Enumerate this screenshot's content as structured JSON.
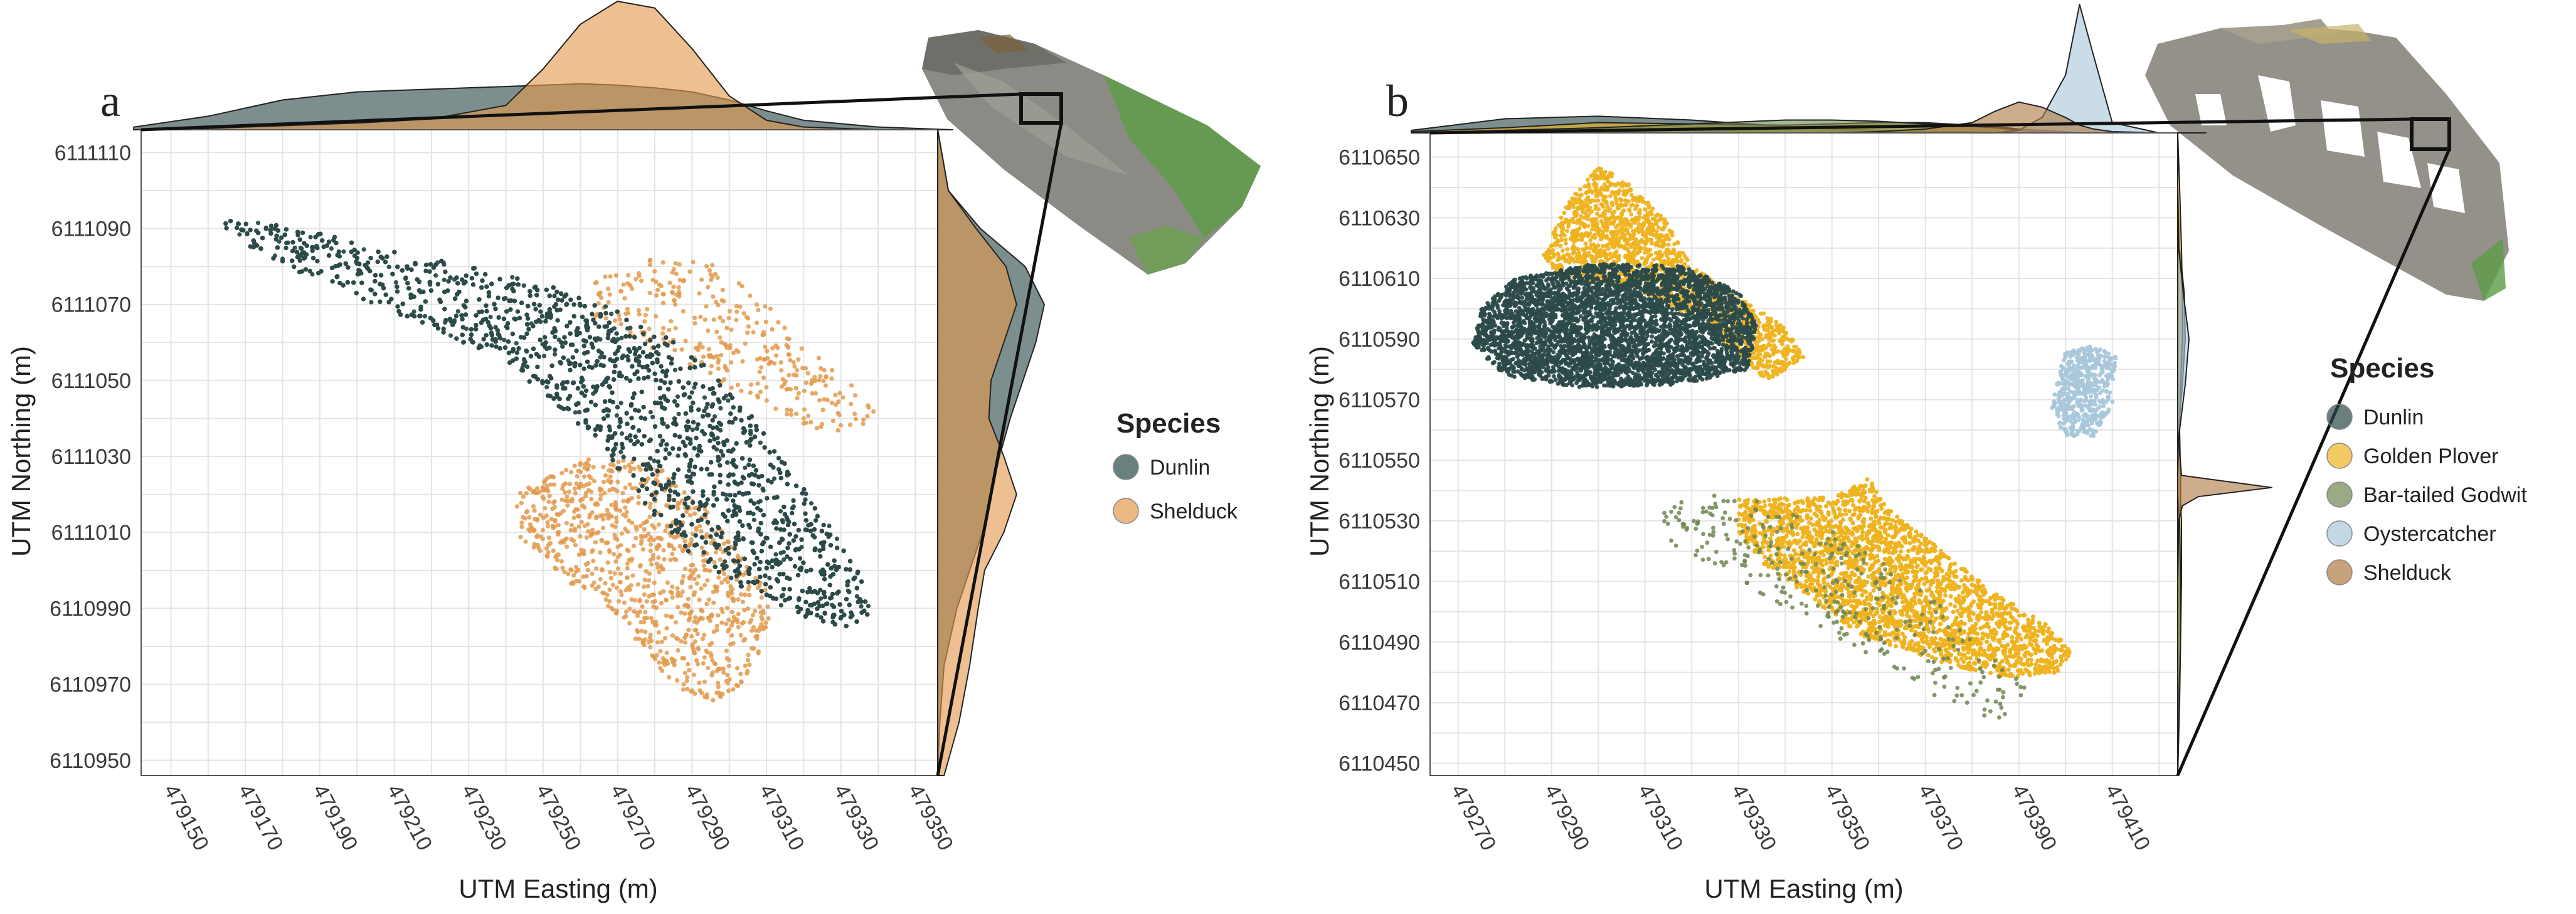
{
  "figure": {
    "panels": [
      {
        "letter": "a"
      },
      {
        "letter": "b"
      }
    ]
  },
  "colors": {
    "Dunlin": "#2b4a49",
    "Shelduck_a": "#e39a4e",
    "Shelduck_b": "#b07a46",
    "Golden Plover": "#efb321",
    "Bar-tailed Godwit": "#6e8650",
    "Oystercatcher": "#a9c7da",
    "grid": "#e4e4e4",
    "panel_border": "#555555",
    "map_bg": "#8a8a84",
    "map_green": "#5b9a45"
  },
  "chart_data": [
    {
      "type": "scatter",
      "panel": "a",
      "title": "",
      "xlabel": "UTM Easting (m)",
      "ylabel": "UTM Northing (m)",
      "xlim": [
        479142,
        479356
      ],
      "ylim": [
        6110946,
        6111116
      ],
      "xticks": [
        479150,
        479170,
        479190,
        479210,
        479230,
        479250,
        479270,
        479290,
        479310,
        479330,
        479350
      ],
      "yticks": [
        6110950,
        6110970,
        6110990,
        6111010,
        6111030,
        6111050,
        6111070,
        6111090,
        6111110
      ],
      "legend": {
        "title": "Species",
        "entries": [
          "Dunlin",
          "Shelduck"
        ],
        "position": "right"
      },
      "series": [
        {
          "name": "Dunlin",
          "kind": "dense_cluster",
          "n_points": 5200,
          "outline": [
            [
              479165,
              6111093
            ],
            [
              479185,
              6111090
            ],
            [
              479210,
              6111084
            ],
            [
              479240,
              6111078
            ],
            [
              479262,
              6111072
            ],
            [
              479280,
              6111064
            ],
            [
              479296,
              6111052
            ],
            [
              479310,
              6111036
            ],
            [
              479324,
              6111016
            ],
            [
              479336,
              6110998
            ],
            [
              479339,
              6110987
            ],
            [
              479330,
              6110985
            ],
            [
              479318,
              6110988
            ],
            [
              479300,
              6110997
            ],
            [
              479285,
              6111008
            ],
            [
              479274,
              6111022
            ],
            [
              479258,
              6111040
            ],
            [
              479240,
              6111055
            ],
            [
              479215,
              6111066
            ],
            [
              479190,
              6111076
            ],
            [
              479170,
              6111085
            ],
            [
              479164,
              6111091
            ]
          ]
        },
        {
          "name": "Shelduck",
          "kind": "sparse_cloud",
          "regions": [
            {
              "n_points": 320,
              "outline": [
                [
                  479262,
                  6111076
                ],
                [
                  479282,
                  6111083
                ],
                [
                  479298,
                  6111080
                ],
                [
                  479310,
                  6111070
                ],
                [
                  479322,
                  6111058
                ],
                [
                  479334,
                  6111048
                ],
                [
                  479342,
                  6111038
                ],
                [
                  479326,
                  6111036
                ],
                [
                  479312,
                  6111042
                ],
                [
                  479296,
                  6111050
                ],
                [
                  479280,
                  6111058
                ],
                [
                  479264,
                  6111066
                ]
              ]
            },
            {
              "n_points": 900,
              "outline": [
                [
                  479242,
                  6111020
                ],
                [
                  479262,
                  6111030
                ],
                [
                  479280,
                  6111028
                ],
                [
                  479292,
                  6111018
                ],
                [
                  479302,
                  6111006
                ],
                [
                  479312,
                  6110992
                ],
                [
                  479308,
                  6110978
                ],
                [
                  479300,
                  6110965
                ],
                [
                  479290,
                  6110966
                ],
                [
                  479280,
                  6110975
                ],
                [
                  479270,
                  6110988
                ],
                [
                  479255,
                  6110998
                ],
                [
                  479244,
                  6111008
                ]
              ]
            }
          ]
        }
      ],
      "marginal_x": {
        "x": [
          479140,
          479160,
          479180,
          479200,
          479220,
          479240,
          479250,
          479260,
          479270,
          479280,
          479290,
          479300,
          479310,
          479320,
          479340,
          479360
        ],
        "Dunlin": [
          0.02,
          0.1,
          0.22,
          0.28,
          0.3,
          0.32,
          0.33,
          0.34,
          0.33,
          0.31,
          0.28,
          0.22,
          0.14,
          0.07,
          0.02,
          0.0
        ],
        "Shelduck": [
          0.0,
          0.01,
          0.03,
          0.05,
          0.08,
          0.18,
          0.45,
          0.78,
          0.95,
          0.9,
          0.6,
          0.25,
          0.07,
          0.02,
          0.0,
          0.0
        ]
      },
      "marginal_y": {
        "y": [
          6110946,
          6110960,
          6110975,
          6110990,
          6111000,
          6111010,
          6111020,
          6111030,
          6111040,
          6111050,
          6111060,
          6111070,
          6111080,
          6111090,
          6111100,
          6111116
        ],
        "Dunlin": [
          0.0,
          0.02,
          0.06,
          0.18,
          0.3,
          0.42,
          0.5,
          0.58,
          0.68,
          0.8,
          0.92,
          1.0,
          0.82,
          0.4,
          0.1,
          0.0
        ],
        "Shelduck": [
          0.06,
          0.2,
          0.3,
          0.38,
          0.44,
          0.62,
          0.74,
          0.62,
          0.48,
          0.5,
          0.62,
          0.74,
          0.64,
          0.36,
          0.1,
          0.0
        ]
      }
    },
    {
      "type": "scatter",
      "panel": "b",
      "title": "",
      "xlabel": "UTM Easting (m)",
      "ylabel": "UTM Northing (m)",
      "xlim": [
        479264,
        479424
      ],
      "ylim": [
        6110446,
        6110658
      ],
      "xticks": [
        479270,
        479290,
        479310,
        479330,
        479350,
        479370,
        479390,
        479410
      ],
      "yticks": [
        6110450,
        6110470,
        6110490,
        6110510,
        6110530,
        6110550,
        6110570,
        6110590,
        6110610,
        6110630,
        6110650
      ],
      "legend": {
        "title": "Species",
        "entries": [
          "Dunlin",
          "Golden Plover",
          "Bar-tailed Godwit",
          "Oystercatcher",
          "Shelduck"
        ],
        "position": "right"
      },
      "series": [
        {
          "name": "Golden Plover",
          "kind": "dense_cluster",
          "n_points": 2000,
          "outline": [
            [
              479288,
              6110618
            ],
            [
              479294,
              6110636
            ],
            [
              479300,
              6110647
            ],
            [
              479306,
              6110642
            ],
            [
              479314,
              6110630
            ],
            [
              479320,
              6110614
            ],
            [
              479330,
              6110604
            ],
            [
              479340,
              6110594
            ],
            [
              479344,
              6110584
            ],
            [
              479336,
              6110576
            ],
            [
              479322,
              6110596
            ],
            [
              479306,
              6110608
            ],
            [
              479292,
              6110610
            ]
          ]
        },
        {
          "name": "Dunlin",
          "kind": "dense_cluster",
          "n_points": 4200,
          "outline": [
            [
              479275,
              6110600
            ],
            [
              479282,
              6110610
            ],
            [
              479300,
              6110615
            ],
            [
              479318,
              6110614
            ],
            [
              479330,
              6110606
            ],
            [
              479334,
              6110594
            ],
            [
              479332,
              6110580
            ],
            [
              479318,
              6110575
            ],
            [
              479296,
              6110574
            ],
            [
              479280,
              6110578
            ],
            [
              479273,
              6110588
            ]
          ]
        },
        {
          "name": "Golden Plover",
          "kind": "dense_cluster",
          "n_points": 4800,
          "outline": [
            [
              479330,
              6110537
            ],
            [
              479350,
              6110538
            ],
            [
              479358,
              6110544
            ],
            [
              479362,
              6110534
            ],
            [
              479372,
              6110522
            ],
            [
              479385,
              6110506
            ],
            [
              479396,
              6110496
            ],
            [
              479402,
              6110486
            ],
            [
              479398,
              6110480
            ],
            [
              479386,
              6110478
            ],
            [
              479372,
              6110484
            ],
            [
              479356,
              6110492
            ],
            [
              479346,
              6110504
            ],
            [
              479335,
              6110516
            ],
            [
              479330,
              6110526
            ]
          ]
        },
        {
          "name": "Bar-tailed Godwit",
          "kind": "sparse_cloud",
          "n_points": 330,
          "outline": [
            [
              479313,
              6110532
            ],
            [
              479322,
              6110540
            ],
            [
              479336,
              6110536
            ],
            [
              479354,
              6110524
            ],
            [
              479370,
              6110506
            ],
            [
              479384,
              6110488
            ],
            [
              479392,
              6110474
            ],
            [
              479386,
              6110464
            ],
            [
              479376,
              6110468
            ],
            [
              479362,
              6110482
            ],
            [
              479346,
              6110496
            ],
            [
              479330,
              6110510
            ],
            [
              479316,
              6110522
            ]
          ]
        },
        {
          "name": "Oystercatcher",
          "kind": "dense_cluster",
          "n_points": 520,
          "outline": [
            [
              479398,
              6110576
            ],
            [
              479400,
              6110586
            ],
            [
              479406,
              6110588
            ],
            [
              479411,
              6110584
            ],
            [
              479410,
              6110568
            ],
            [
              479406,
              6110558
            ],
            [
              479400,
              6110558
            ],
            [
              479397,
              6110566
            ]
          ]
        }
      ],
      "marginal_x": {
        "x": [
          479260,
          479280,
          479300,
          479320,
          479340,
          479350,
          479360,
          479370,
          479380,
          479385,
          479390,
          479395,
          479400,
          479403,
          479406,
          479410,
          479420,
          479430
        ],
        "Dunlin": [
          0.02,
          0.11,
          0.13,
          0.1,
          0.05,
          0.03,
          0.02,
          0.01,
          0.01,
          0.0,
          0.0,
          0.0,
          0.0,
          0.0,
          0.0,
          0.0,
          0.0,
          0.0
        ],
        "Golden Plover": [
          0.01,
          0.04,
          0.08,
          0.07,
          0.06,
          0.07,
          0.08,
          0.08,
          0.06,
          0.05,
          0.03,
          0.02,
          0.01,
          0.0,
          0.0,
          0.0,
          0.0,
          0.0
        ],
        "Bar-tailed Godwit": [
          0.0,
          0.02,
          0.04,
          0.07,
          0.1,
          0.1,
          0.09,
          0.07,
          0.05,
          0.04,
          0.02,
          0.01,
          0.0,
          0.0,
          0.0,
          0.0,
          0.0,
          0.0
        ],
        "Oystercatcher": [
          0.0,
          0.0,
          0.0,
          0.0,
          0.0,
          0.0,
          0.0,
          0.0,
          0.0,
          0.0,
          0.02,
          0.12,
          0.45,
          1.0,
          0.6,
          0.08,
          0.0,
          0.0
        ],
        "Shelduck": [
          0.0,
          0.0,
          0.0,
          0.0,
          0.0,
          0.0,
          0.01,
          0.03,
          0.08,
          0.17,
          0.24,
          0.2,
          0.12,
          0.06,
          0.03,
          0.01,
          0.0,
          0.0
        ]
      },
      "marginal_y": {
        "y": [
          6110446,
          6110470,
          6110490,
          6110510,
          6110530,
          6110535,
          6110538,
          6110541,
          6110545,
          6110560,
          6110575,
          6110590,
          6110605,
          6110620,
          6110640,
          6110658
        ],
        "Dunlin": [
          0.0,
          0.0,
          0.0,
          0.0,
          0.0,
          0.0,
          0.0,
          0.0,
          0.0,
          0.01,
          0.05,
          0.08,
          0.07,
          0.02,
          0.0,
          0.0
        ],
        "Golden Plover": [
          0.0,
          0.01,
          0.03,
          0.04,
          0.04,
          0.03,
          0.03,
          0.03,
          0.03,
          0.02,
          0.03,
          0.05,
          0.05,
          0.04,
          0.02,
          0.0
        ],
        "Bar-tailed Godwit": [
          0.0,
          0.02,
          0.03,
          0.03,
          0.02,
          0.01,
          0.0,
          0.0,
          0.0,
          0.0,
          0.0,
          0.0,
          0.0,
          0.0,
          0.0,
          0.0
        ],
        "Oystercatcher": [
          0.0,
          0.0,
          0.0,
          0.0,
          0.0,
          0.0,
          0.0,
          0.0,
          0.0,
          0.02,
          0.08,
          0.12,
          0.06,
          0.01,
          0.0,
          0.0
        ],
        "Shelduck": [
          0.0,
          0.0,
          0.0,
          0.0,
          0.01,
          0.05,
          0.22,
          1.0,
          0.04,
          0.0,
          0.0,
          0.0,
          0.0,
          0.0,
          0.0,
          0.0
        ]
      }
    }
  ]
}
